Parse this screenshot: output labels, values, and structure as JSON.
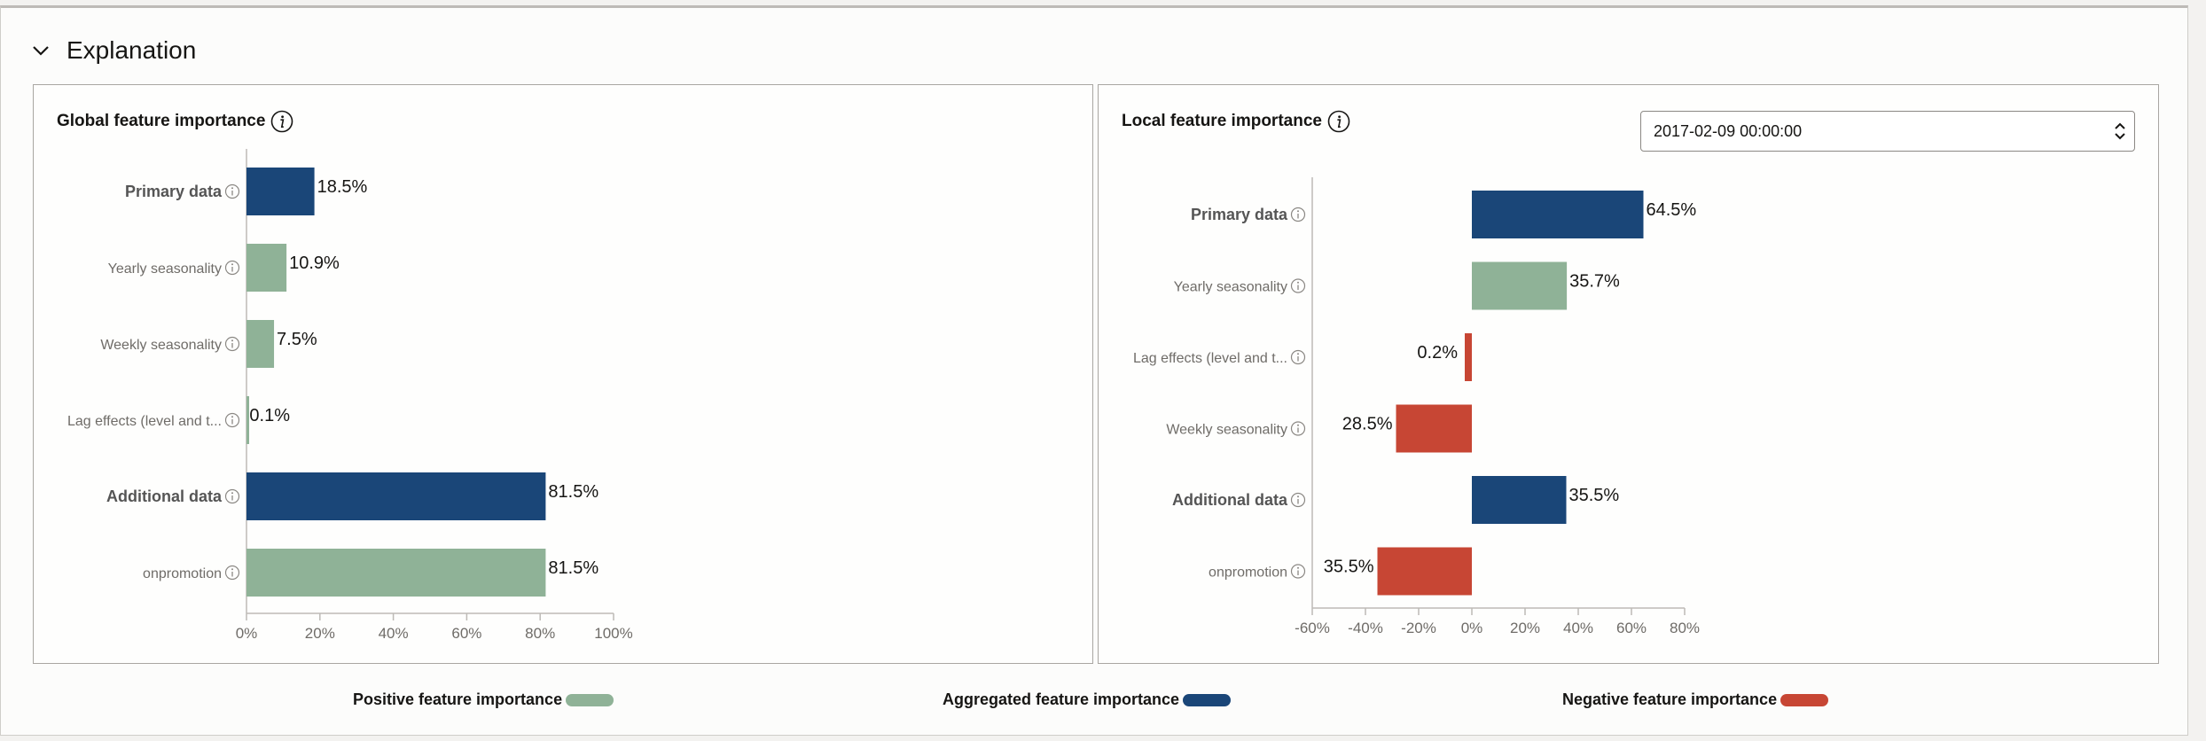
{
  "section": {
    "title": "Explanation"
  },
  "colors": {
    "positive": "#8fb297",
    "aggregated": "#1a4678",
    "negative": "#c74634",
    "axis": "#bdbab6",
    "tick": "#6f6c68"
  },
  "global": {
    "title": "Global feature importance"
  },
  "local": {
    "title": "Local feature importance",
    "date_value": "2017-02-09 00:00:00"
  },
  "legend": {
    "positive": "Positive feature importance",
    "aggregated": "Aggregated feature importance",
    "negative": "Negative feature importance"
  },
  "chart_data": [
    {
      "type": "bar",
      "orientation": "horizontal",
      "title": "Global feature importance",
      "categories": [
        "Primary data",
        "Yearly seasonality",
        "Weekly seasonality",
        "Lag effects (level and t...",
        "Additional data",
        "onpromotion"
      ],
      "values": [
        18.5,
        10.9,
        7.5,
        0.1,
        81.5,
        81.5
      ],
      "value_labels": [
        "18.5%",
        "10.9%",
        "7.5%",
        "0.1%",
        "81.5%",
        "81.5%"
      ],
      "kinds": [
        "aggregated",
        "positive",
        "positive",
        "positive",
        "aggregated",
        "positive"
      ],
      "xlim": [
        0,
        100
      ],
      "xticks": [
        "0%",
        "20%",
        "40%",
        "60%",
        "80%",
        "100%"
      ],
      "grid": false
    },
    {
      "type": "bar",
      "orientation": "horizontal",
      "title": "Local feature importance",
      "categories": [
        "Primary data",
        "Yearly seasonality",
        "Lag effects (level and t...",
        "Weekly seasonality",
        "Additional data",
        "onpromotion"
      ],
      "values": [
        64.5,
        35.7,
        -0.2,
        -28.5,
        35.5,
        -35.5
      ],
      "value_labels": [
        "64.5%",
        "35.7%",
        "0.2%",
        "28.5%",
        "35.5%",
        "35.5%"
      ],
      "kinds": [
        "aggregated",
        "positive",
        "negative",
        "negative",
        "aggregated",
        "negative"
      ],
      "xlim": [
        -60,
        80
      ],
      "xticks": [
        "-60%",
        "-40%",
        "-20%",
        "0%",
        "20%",
        "40%",
        "60%",
        "80%"
      ],
      "grid": false
    }
  ]
}
